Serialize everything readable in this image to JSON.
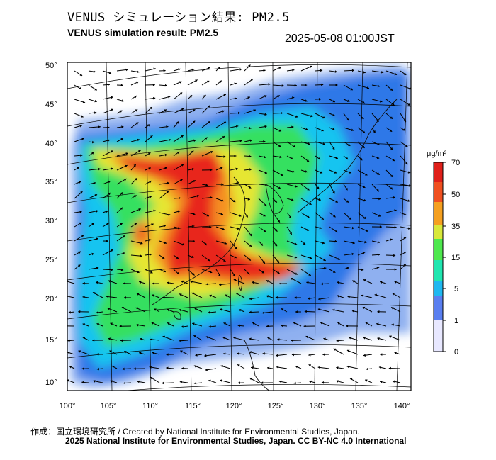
{
  "header": {
    "title_jp": "VENUS シミュレーション結果: PM2.5",
    "title_en": "VENUS simulation result: PM2.5",
    "timestamp": "2025-05-08 01:00JST"
  },
  "map": {
    "lat_labels": [
      "50°",
      "45°",
      "40°",
      "35°",
      "30°",
      "25°",
      "20°",
      "15°",
      "10°"
    ],
    "lon_labels": [
      "100°",
      "105°",
      "110°",
      "115°",
      "120°",
      "125°",
      "130°",
      "135°",
      "140°"
    ],
    "background_color": "#ffffff"
  },
  "colorbar": {
    "unit": "μg/m³",
    "tick_labels": [
      "70",
      "50",
      "35",
      "15",
      "5",
      "1",
      "0"
    ],
    "colors": [
      "#e8e8ff",
      "#5a7ff0",
      "#1fb8f0",
      "#20e6b0",
      "#4ee84e",
      "#d8e83a",
      "#f5a020",
      "#f05020",
      "#e0201a"
    ]
  },
  "footer": {
    "credit_line1": "作成：国立環境研究所 / Created by National Institute for Environmental Studies, Japan.",
    "credit_line2": "2025 National Institute for Environmental Studies, Japan. CC BY-NC 4.0 International"
  }
}
